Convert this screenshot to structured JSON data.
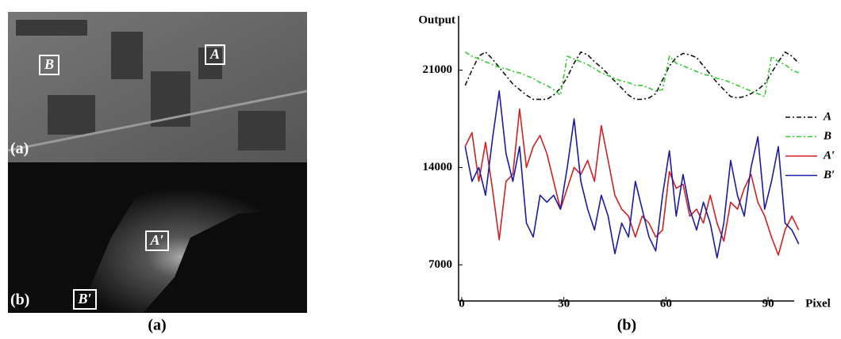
{
  "panel": {
    "markers": [
      "B",
      "A",
      "A′",
      "B′"
    ],
    "top_label": "(a)",
    "bottom_label": "(b)"
  },
  "captions": [
    "(a)",
    "(b)"
  ],
  "chart_data": {
    "type": "line",
    "ylabel": "Output",
    "xlabel": "Pixel",
    "x": [
      1,
      3,
      5,
      7,
      9,
      11,
      13,
      15,
      17,
      19,
      21,
      23,
      25,
      27,
      29,
      31,
      33,
      35,
      37,
      39,
      41,
      43,
      45,
      47,
      49,
      51,
      53,
      55,
      57,
      59,
      61,
      63,
      65,
      67,
      69,
      71,
      73,
      75,
      77,
      79,
      81,
      83,
      85,
      87,
      89,
      91,
      93,
      95,
      97,
      99
    ],
    "series": [
      {
        "name": "A",
        "color": "#111111",
        "dash": "6,3,2,3",
        "values": [
          19900,
          21000,
          22000,
          22300,
          21800,
          21200,
          20600,
          20000,
          19600,
          19200,
          18900,
          18900,
          18900,
          19200,
          19700,
          20500,
          21500,
          22300,
          22100,
          21600,
          21200,
          20700,
          20200,
          19700,
          19200,
          18900,
          18900,
          19000,
          19300,
          20300,
          21300,
          21900,
          22200,
          22100,
          21900,
          21300,
          20700,
          20100,
          19600,
          19100,
          19000,
          19100,
          19300,
          19600,
          20000,
          20800,
          21600,
          22300,
          22000,
          21500
        ]
      },
      {
        "name": "B",
        "color": "#33cc33",
        "dash": "6,3,2,3",
        "values": [
          22300,
          22000,
          21800,
          21600,
          21400,
          21200,
          21100,
          20900,
          20800,
          20600,
          20400,
          20100,
          19900,
          19600,
          19200,
          22000,
          21800,
          21600,
          21400,
          21100,
          20800,
          20600,
          20400,
          20200,
          20100,
          19900,
          19900,
          19700,
          19500,
          19600,
          22000,
          21500,
          21300,
          21100,
          20900,
          20700,
          20600,
          20400,
          20300,
          20100,
          19900,
          19700,
          19500,
          19300,
          19100,
          22000,
          21600,
          21400,
          21000,
          20800
        ]
      },
      {
        "name": "A′",
        "color": "#d42020",
        "dash": "",
        "values": [
          15500,
          16500,
          13000,
          15800,
          12500,
          8800,
          13000,
          13500,
          18200,
          14000,
          15500,
          16300,
          15000,
          13000,
          11000,
          12500,
          14000,
          13500,
          14500,
          13000,
          17000,
          14500,
          12000,
          11000,
          10500,
          9000,
          10500,
          10000,
          9000,
          9500,
          13700,
          12500,
          12800,
          10500,
          11000,
          10000,
          12000,
          10000,
          8700,
          11500,
          11000,
          12500,
          13500,
          11500,
          10500,
          9000,
          7700,
          9500,
          10500,
          9500
        ]
      },
      {
        "name": "B′",
        "color": "#1a1aa8",
        "dash": "",
        "values": [
          15500,
          13000,
          14000,
          12000,
          16000,
          19500,
          15000,
          13000,
          15500,
          10000,
          9000,
          12000,
          11500,
          12000,
          11000,
          14000,
          17500,
          13000,
          11000,
          9500,
          12000,
          10500,
          7800,
          10000,
          9000,
          13000,
          11000,
          9000,
          8000,
          12000,
          15200,
          10500,
          13500,
          11000,
          9500,
          11500,
          10000,
          7500,
          10000,
          14500,
          12000,
          10500,
          14000,
          16200,
          11000,
          13000,
          15500,
          10000,
          9500,
          8500
        ]
      }
    ],
    "xlim": [
      0,
      100
    ],
    "xticks": [
      0,
      30,
      60,
      90
    ],
    "ylim": [
      4400,
      24900
    ],
    "yticks": [
      7000,
      14000,
      21000
    ],
    "grid": false,
    "legend": "upper right"
  }
}
